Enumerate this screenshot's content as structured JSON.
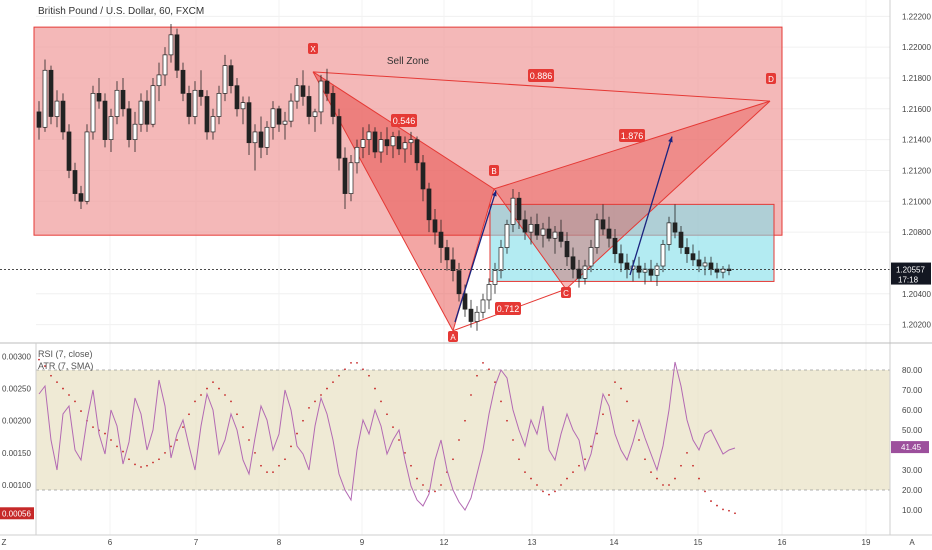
{
  "chart_data": {
    "type": "candlestick",
    "title": "British Pound / U.S. Dollar, 60, FXCM",
    "price_axis": {
      "ticks": [
        "1.22200",
        "1.22000",
        "1.21800",
        "1.21600",
        "1.21400",
        "1.21200",
        "1.21000",
        "1.20800",
        "1.20400",
        "1.20200"
      ],
      "current_price": "1.20557",
      "countdown": "17:18",
      "range": [
        1.201,
        1.2228
      ]
    },
    "time_axis": {
      "labels": [
        "Z",
        "6",
        "7",
        "8",
        "9",
        "12",
        "13",
        "14",
        "15",
        "16",
        "19",
        "A"
      ]
    },
    "sell_zone": {
      "label": "Sell Zone",
      "top": 1.2213,
      "bottom": 1.2078
    },
    "target_zone": {
      "top": 1.2098,
      "bottom": 1.2048
    },
    "pattern": {
      "points": [
        {
          "label": "X",
          "price": 1.2184
        },
        {
          "label": "A",
          "price": 1.2016
        },
        {
          "label": "B",
          "price": 1.2108
        },
        {
          "label": "C",
          "price": 1.2043
        },
        {
          "label": "D",
          "price": 1.2165
        }
      ],
      "ratios": [
        "0.546",
        "0.712",
        "1.876",
        "0.886"
      ]
    },
    "candles": [
      [
        1.2158,
        1.2165,
        1.214,
        1.2148
      ],
      [
        1.2148,
        1.2192,
        1.2145,
        1.2185
      ],
      [
        1.2185,
        1.2188,
        1.215,
        1.2155
      ],
      [
        1.2155,
        1.2172,
        1.2148,
        1.2165
      ],
      [
        1.2165,
        1.217,
        1.214,
        1.2145
      ],
      [
        1.2145,
        1.215,
        1.2115,
        1.212
      ],
      [
        1.212,
        1.2125,
        1.21,
        1.2105
      ],
      [
        1.2105,
        1.211,
        1.2095,
        1.21
      ],
      [
        1.21,
        1.215,
        1.2098,
        1.2145
      ],
      [
        1.2145,
        1.2175,
        1.214,
        1.217
      ],
      [
        1.217,
        1.218,
        1.216,
        1.2165
      ],
      [
        1.2165,
        1.217,
        1.2135,
        1.214
      ],
      [
        1.214,
        1.216,
        1.2132,
        1.2155
      ],
      [
        1.2155,
        1.2178,
        1.215,
        1.2172
      ],
      [
        1.2172,
        1.218,
        1.2155,
        1.216
      ],
      [
        1.216,
        1.2165,
        1.2135,
        1.214
      ],
      [
        1.214,
        1.2158,
        1.2132,
        1.215
      ],
      [
        1.215,
        1.217,
        1.2145,
        1.2165
      ],
      [
        1.2165,
        1.2172,
        1.2145,
        1.215
      ],
      [
        1.215,
        1.218,
        1.2148,
        1.2175
      ],
      [
        1.2175,
        1.219,
        1.2165,
        1.2182
      ],
      [
        1.2182,
        1.22,
        1.2175,
        1.2195
      ],
      [
        1.2195,
        1.2215,
        1.219,
        1.2208
      ],
      [
        1.2208,
        1.2212,
        1.218,
        1.2185
      ],
      [
        1.2185,
        1.219,
        1.2165,
        1.217
      ],
      [
        1.217,
        1.2175,
        1.215,
        1.2155
      ],
      [
        1.2155,
        1.2178,
        1.215,
        1.2172
      ],
      [
        1.2172,
        1.2185,
        1.2162,
        1.2168
      ],
      [
        1.2168,
        1.2172,
        1.214,
        1.2145
      ],
      [
        1.2145,
        1.216,
        1.214,
        1.2155
      ],
      [
        1.2155,
        1.2175,
        1.215,
        1.217
      ],
      [
        1.217,
        1.2195,
        1.2165,
        1.2188
      ],
      [
        1.2188,
        1.2192,
        1.217,
        1.2175
      ],
      [
        1.2175,
        1.218,
        1.2155,
        1.216
      ],
      [
        1.216,
        1.2168,
        1.215,
        1.2164
      ],
      [
        1.2164,
        1.2168,
        1.213,
        1.2138
      ],
      [
        1.2138,
        1.215,
        1.212,
        1.2145
      ],
      [
        1.2145,
        1.2155,
        1.2128,
        1.2135
      ],
      [
        1.2135,
        1.2152,
        1.213,
        1.2148
      ],
      [
        1.2148,
        1.2165,
        1.214,
        1.216
      ],
      [
        1.216,
        1.2162,
        1.2145,
        1.215
      ],
      [
        1.215,
        1.2158,
        1.214,
        1.2152
      ],
      [
        1.2152,
        1.217,
        1.2148,
        1.2165
      ],
      [
        1.2165,
        1.218,
        1.216,
        1.2175
      ],
      [
        1.2175,
        1.2185,
        1.2162,
        1.2168
      ],
      [
        1.2168,
        1.2175,
        1.215,
        1.2155
      ],
      [
        1.2155,
        1.216,
        1.2145,
        1.2158
      ],
      [
        1.2158,
        1.2182,
        1.215,
        1.2178
      ],
      [
        1.2178,
        1.2186,
        1.2165,
        1.217
      ],
      [
        1.217,
        1.2175,
        1.215,
        1.2155
      ],
      [
        1.2155,
        1.216,
        1.212,
        1.2128
      ],
      [
        1.2128,
        1.2135,
        1.2095,
        1.2105
      ],
      [
        1.2105,
        1.213,
        1.21,
        1.2125
      ],
      [
        1.2125,
        1.214,
        1.2118,
        1.2135
      ],
      [
        1.2135,
        1.2148,
        1.2128,
        1.214
      ],
      [
        1.214,
        1.215,
        1.213,
        1.2145
      ],
      [
        1.2145,
        1.2148,
        1.2128,
        1.2132
      ],
      [
        1.2132,
        1.2145,
        1.2125,
        1.214
      ],
      [
        1.214,
        1.2148,
        1.213,
        1.2136
      ],
      [
        1.2136,
        1.2145,
        1.2128,
        1.2142
      ],
      [
        1.2142,
        1.2146,
        1.213,
        1.2134
      ],
      [
        1.2134,
        1.2142,
        1.2125,
        1.2138
      ],
      [
        1.2138,
        1.2145,
        1.213,
        1.214
      ],
      [
        1.214,
        1.2142,
        1.212,
        1.2125
      ],
      [
        1.2125,
        1.213,
        1.21,
        1.2108
      ],
      [
        1.2108,
        1.2112,
        1.208,
        1.2088
      ],
      [
        1.2088,
        1.2095,
        1.2072,
        1.208
      ],
      [
        1.208,
        1.2088,
        1.206,
        1.207
      ],
      [
        1.207,
        1.2075,
        1.2055,
        1.2062
      ],
      [
        1.2062,
        1.207,
        1.2048,
        1.2055
      ],
      [
        1.2055,
        1.206,
        1.2035,
        1.204
      ],
      [
        1.204,
        1.2046,
        1.2025,
        1.203
      ],
      [
        1.203,
        1.2036,
        1.2018,
        1.2022
      ],
      [
        1.2022,
        1.2032,
        1.2016,
        1.2028
      ],
      [
        1.2028,
        1.204,
        1.2024,
        1.2036
      ],
      [
        1.2036,
        1.205,
        1.203,
        1.2046
      ],
      [
        1.2046,
        1.206,
        1.204,
        1.2055
      ],
      [
        1.2055,
        1.2075,
        1.205,
        1.207
      ],
      [
        1.207,
        1.2088,
        1.2066,
        1.2085
      ],
      [
        1.2085,
        1.2108,
        1.208,
        1.2102
      ],
      [
        1.2102,
        1.2106,
        1.2082,
        1.2088
      ],
      [
        1.2088,
        1.2094,
        1.2075,
        1.208
      ],
      [
        1.208,
        1.209,
        1.2072,
        1.2085
      ],
      [
        1.2085,
        1.2092,
        1.2075,
        1.2078
      ],
      [
        1.2078,
        1.2086,
        1.207,
        1.2082
      ],
      [
        1.2082,
        1.209,
        1.2074,
        1.2076
      ],
      [
        1.2076,
        1.2084,
        1.2066,
        1.208
      ],
      [
        1.208,
        1.2088,
        1.207,
        1.2074
      ],
      [
        1.2074,
        1.208,
        1.2058,
        1.2064
      ],
      [
        1.2064,
        1.207,
        1.205,
        1.2056
      ],
      [
        1.2056,
        1.2062,
        1.2044,
        1.205
      ],
      [
        1.205,
        1.2062,
        1.2046,
        1.2058
      ],
      [
        1.2058,
        1.2075,
        1.2054,
        1.207
      ],
      [
        1.207,
        1.2092,
        1.2066,
        1.2088
      ],
      [
        1.2088,
        1.2098,
        1.2078,
        1.2082
      ],
      [
        1.2082,
        1.209,
        1.207,
        1.2076
      ],
      [
        1.2076,
        1.2082,
        1.206,
        1.2066
      ],
      [
        1.2066,
        1.2072,
        1.2054,
        1.206
      ],
      [
        1.206,
        1.2066,
        1.205,
        1.2056
      ],
      [
        1.2056,
        1.2062,
        1.2048,
        1.2058
      ],
      [
        1.2058,
        1.2064,
        1.205,
        1.2054
      ],
      [
        1.2054,
        1.206,
        1.2046,
        1.2056
      ],
      [
        1.2056,
        1.2062,
        1.2048,
        1.2052
      ],
      [
        1.2052,
        1.206,
        1.2045,
        1.2058
      ],
      [
        1.2058,
        1.2075,
        1.2054,
        1.2072
      ],
      [
        1.2072,
        1.209,
        1.2068,
        1.2086
      ],
      [
        1.2086,
        1.2098,
        1.2076,
        1.208
      ],
      [
        1.208,
        1.2084,
        1.2066,
        1.207
      ],
      [
        1.207,
        1.2076,
        1.206,
        1.2066
      ],
      [
        1.2066,
        1.2072,
        1.2058,
        1.2062
      ],
      [
        1.2062,
        1.2068,
        1.2054,
        1.2058
      ],
      [
        1.2058,
        1.2064,
        1.2052,
        1.206
      ],
      [
        1.206,
        1.2064,
        1.2052,
        1.2056
      ],
      [
        1.2056,
        1.206,
        1.205,
        1.2054
      ],
      [
        1.2054,
        1.2058,
        1.205,
        1.2056
      ],
      [
        1.2056,
        1.2059,
        1.2052,
        1.2055
      ]
    ],
    "indicators": {
      "rsi": {
        "name": "RSI (7, close)",
        "value": "41.45",
        "ticks": [
          "80.00",
          "70.00",
          "60.00",
          "50.00",
          "40.00",
          "30.00",
          "20.00",
          "10.00"
        ],
        "overbought": 80,
        "oversold": 20,
        "values": [
          68,
          72,
          45,
          30,
          58,
          62,
          40,
          35,
          55,
          70,
          48,
          38,
          60,
          52,
          33,
          44,
          66,
          58,
          40,
          50,
          75,
          62,
          36,
          48,
          55,
          42,
          30,
          52,
          68,
          60,
          38,
          45,
          58,
          50,
          35,
          28,
          46,
          62,
          55,
          40,
          48,
          70,
          60,
          42,
          38,
          30,
          52,
          66,
          58,
          45,
          28,
          20,
          15,
          40,
          55,
          48,
          60,
          52,
          38,
          45,
          50,
          35,
          22,
          15,
          12,
          18,
          35,
          45,
          30,
          20,
          14,
          10,
          16,
          28,
          40,
          58,
          72,
          80,
          76,
          60,
          50,
          42,
          55,
          48,
          62,
          40,
          35,
          48,
          58,
          50,
          45,
          30,
          38,
          52,
          68,
          62,
          48,
          40,
          35,
          44,
          55,
          46,
          38,
          30,
          42,
          60,
          84,
          72,
          55,
          45,
          40,
          48,
          50,
          44,
          38,
          40,
          41
        ]
      },
      "atr": {
        "name": "ATR (7, SMA)",
        "value": "0.00056",
        "ticks": [
          "0.00300",
          "0.00250",
          "0.00200",
          "0.00150",
          "0.00100"
        ],
        "range": [
          0.0003,
          0.0031
        ],
        "values": [
          0.00295,
          0.00285,
          0.0027,
          0.0026,
          0.0025,
          0.0024,
          0.0023,
          0.00215,
          0.002,
          0.0019,
          0.00185,
          0.0018,
          0.0017,
          0.0016,
          0.00152,
          0.0014,
          0.00132,
          0.00128,
          0.0013,
          0.00135,
          0.0014,
          0.0015,
          0.0016,
          0.0017,
          0.0019,
          0.0021,
          0.0023,
          0.0024,
          0.0025,
          0.0026,
          0.0025,
          0.0024,
          0.0023,
          0.0021,
          0.0019,
          0.0017,
          0.0015,
          0.0013,
          0.0012,
          0.0012,
          0.0013,
          0.0014,
          0.0016,
          0.0018,
          0.002,
          0.0022,
          0.0023,
          0.0024,
          0.0025,
          0.0026,
          0.0027,
          0.0028,
          0.0029,
          0.0029,
          0.0028,
          0.0027,
          0.0025,
          0.0023,
          0.0021,
          0.0019,
          0.0017,
          0.0015,
          0.0013,
          0.0011,
          0.001,
          0.0009,
          0.0009,
          0.001,
          0.0012,
          0.0014,
          0.0017,
          0.002,
          0.0024,
          0.0027,
          0.0029,
          0.0028,
          0.0026,
          0.0023,
          0.002,
          0.0017,
          0.0014,
          0.0012,
          0.0011,
          0.001,
          0.0009,
          0.00085,
          0.0009,
          0.001,
          0.0011,
          0.0012,
          0.0013,
          0.0014,
          0.0016,
          0.0018,
          0.0021,
          0.0024,
          0.0026,
          0.0025,
          0.0023,
          0.002,
          0.0017,
          0.0014,
          0.0012,
          0.0011,
          0.001,
          0.001,
          0.0011,
          0.0013,
          0.0015,
          0.0013,
          0.0011,
          0.0009,
          0.00075,
          0.00068,
          0.00062,
          0.0006,
          0.00056
        ]
      }
    }
  }
}
